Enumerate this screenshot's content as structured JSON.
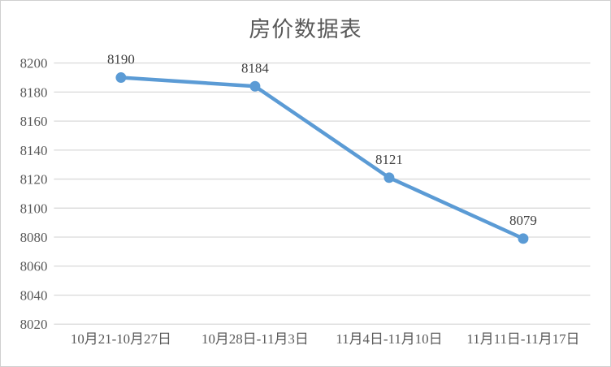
{
  "chart_data": {
    "type": "line",
    "title": "房价数据表",
    "categories": [
      "10月21-10月27日",
      "10月28日-11月3日",
      "11月4日-11月10日",
      "11月11日-11月17日"
    ],
    "values": [
      8190,
      8184,
      8121,
      8079
    ],
    "data_labels": [
      "8190",
      "8184",
      "8121",
      "8079"
    ],
    "y_ticks": [
      8020,
      8040,
      8060,
      8080,
      8100,
      8120,
      8140,
      8160,
      8180,
      8200
    ],
    "ylim": [
      8020,
      8200
    ],
    "xlabel": "",
    "ylabel": "",
    "grid": true,
    "legend": "none",
    "colors": {
      "line": "#5b9bd5",
      "marker": "#5b9bd5",
      "gridline": "#d9d9d9",
      "title_text": "#595959",
      "axis_text": "#595959",
      "data_label_text": "#404040",
      "chart_border": "#d0d0d0",
      "background": "#ffffff"
    }
  }
}
